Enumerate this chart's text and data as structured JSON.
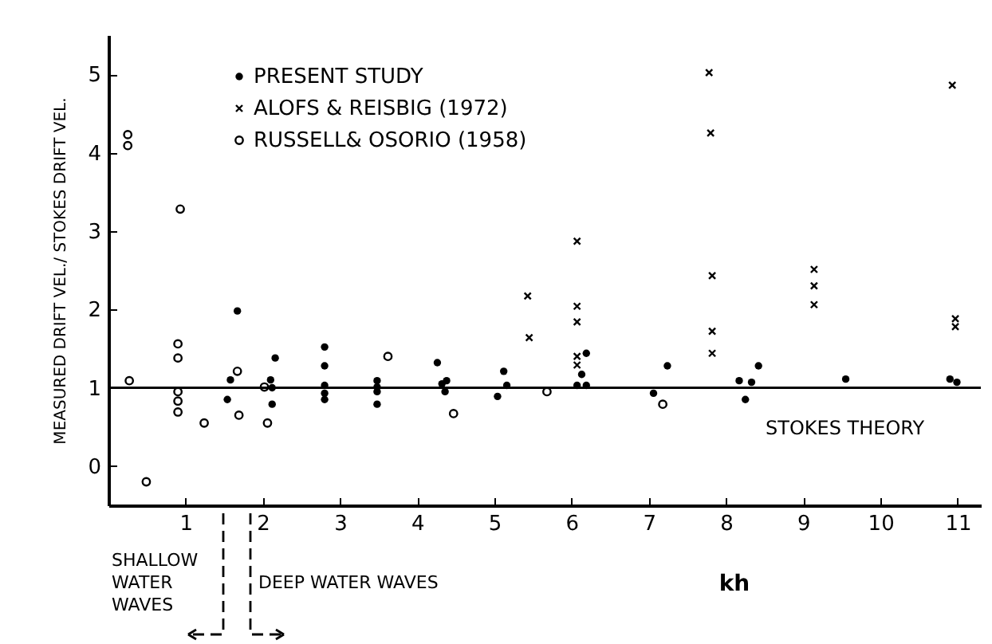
{
  "chart_data": {
    "type": "scatter",
    "xlabel": "kh",
    "ylabel": "MEASURED DRIFT VEL./ STOKES DRIFT VEL.",
    "xlim": [
      0,
      11.3
    ],
    "ylim": [
      -0.5,
      5.5
    ],
    "xticks": [
      1,
      2,
      3,
      4,
      5,
      6,
      7,
      8,
      9,
      10,
      11
    ],
    "yticks": [
      0,
      1,
      2,
      3,
      4,
      5
    ],
    "grid": false,
    "legend": "top left",
    "ref_lines": [
      {
        "axis": "y",
        "value": 1,
        "label": "STOKES THEORY"
      }
    ],
    "annotations": [
      "SHALLOW\nWATER\nWAVES",
      "DEEP WATER WAVES"
    ],
    "series": [
      {
        "name": "PRESENT STUDY",
        "color": "#000000",
        "marker": "circle",
        "x": [
          1.67,
          1.54,
          1.58,
          2.1,
          2.16,
          2.12,
          2.12,
          2.8,
          2.8,
          2.8,
          2.8,
          2.8,
          3.48,
          3.48,
          3.48,
          3.48,
          4.26,
          4.32,
          4.38,
          4.36,
          5.04,
          5.12,
          5.16,
          6.07,
          6.13,
          6.19,
          6.19,
          7.06,
          7.24,
          8.17,
          8.25,
          8.33,
          8.42,
          9.55,
          10.9,
          10.99
        ],
        "values": [
          1.98,
          0.85,
          1.1,
          1.1,
          1.38,
          0.79,
          1.0,
          1.52,
          1.28,
          1.03,
          0.93,
          0.85,
          1.09,
          1.01,
          0.95,
          0.79,
          1.32,
          1.05,
          1.09,
          0.95,
          0.89,
          1.21,
          1.03,
          1.03,
          1.17,
          1.44,
          1.03,
          0.93,
          1.28,
          1.09,
          0.85,
          1.07,
          1.28,
          1.11,
          1.11,
          1.07
        ]
      },
      {
        "name": "ALOFS & REISBIG (1972)",
        "color": "#000000",
        "marker": "cross",
        "x": [
          7.78,
          7.8,
          10.93,
          6.07,
          5.43,
          7.82,
          9.14,
          9.14,
          9.14,
          5.45,
          6.07,
          6.07,
          6.07,
          6.07,
          7.82,
          7.82,
          10.97,
          10.97
        ],
        "values": [
          5.02,
          4.25,
          4.86,
          2.87,
          2.17,
          2.43,
          2.51,
          2.3,
          2.06,
          1.64,
          2.04,
          1.84,
          1.4,
          1.29,
          1.72,
          1.44,
          1.88,
          1.78
        ]
      },
      {
        "name": "RUSSELL& OSORIO (1958)",
        "color": "#000000",
        "marker": "circle",
        "x": [
          0.25,
          0.25,
          0.93,
          0.27,
          0.49,
          0.9,
          0.9,
          0.9,
          0.9,
          0.9,
          1.24,
          1.67,
          1.69,
          2.06,
          2.02,
          3.62,
          4.47,
          5.68,
          7.18
        ],
        "values": [
          4.23,
          4.09,
          3.28,
          1.09,
          -0.2,
          1.56,
          1.38,
          0.95,
          0.83,
          0.69,
          0.55,
          1.21,
          0.65,
          0.55,
          1.01,
          1.4,
          0.67,
          0.95,
          0.79
        ]
      }
    ]
  }
}
